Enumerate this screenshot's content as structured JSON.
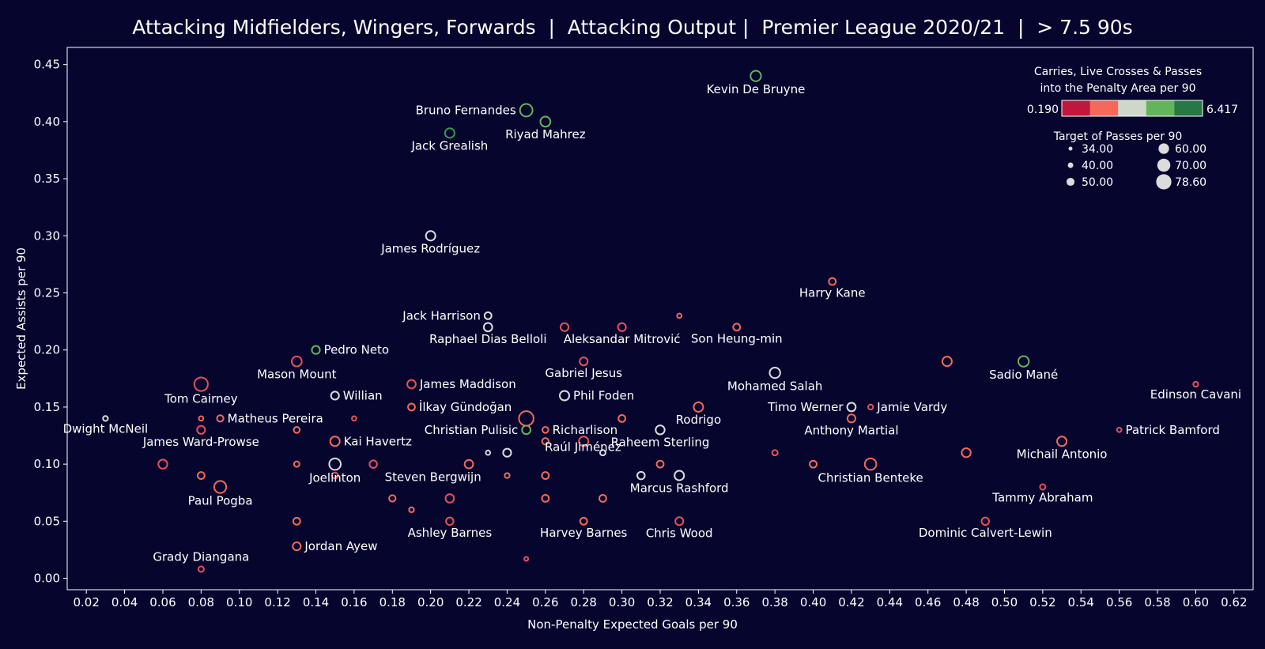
{
  "chart_data": {
    "type": "scatter",
    "title": "Attacking Midfielders, Wingers, Forwards  |  Attacking Output |  Premier League 2020/21  |  > 7.5 90s",
    "xlabel": "Non-Penalty Expected Goals per 90",
    "ylabel": "Expected Assists per 90",
    "xlim": [
      0.01,
      0.63
    ],
    "ylim": [
      -0.01,
      0.465
    ],
    "xticks": [
      "0.02",
      "0.04",
      "0.06",
      "0.08",
      "0.10",
      "0.12",
      "0.14",
      "0.16",
      "0.18",
      "0.20",
      "0.22",
      "0.24",
      "0.26",
      "0.28",
      "0.30",
      "0.32",
      "0.34",
      "0.36",
      "0.38",
      "0.40",
      "0.42",
      "0.44",
      "0.46",
      "0.48",
      "0.50",
      "0.52",
      "0.54",
      "0.56",
      "0.58",
      "0.60",
      "0.62"
    ],
    "yticks": [
      "0.00",
      "0.05",
      "0.10",
      "0.15",
      "0.20",
      "0.25",
      "0.30",
      "0.35",
      "0.40",
      "0.45"
    ],
    "grid": false,
    "color_legend": {
      "title_line1": "Carries, Live Crosses & Passes",
      "title_line2": "into the Penalty Area per 90",
      "min": "0.190",
      "max": "6.417",
      "colors": [
        "#c0173c",
        "#f4695a",
        "#cdd8c8",
        "#64b45a",
        "#267844"
      ]
    },
    "size_legend": {
      "title": "Target of Passes per 90",
      "entries": [
        "34.00",
        "40.00",
        "50.00",
        "60.00",
        "70.00",
        "78.60"
      ],
      "values": [
        34,
        40,
        50,
        60,
        70,
        78.6
      ]
    },
    "points": [
      {
        "name": "Kevin De Bruyne",
        "x": 0.37,
        "y": 0.44,
        "size": 60,
        "color": "#64b45a",
        "label_pos": "below"
      },
      {
        "name": "Bruno Fernandes",
        "x": 0.25,
        "y": 0.41,
        "size": 68,
        "color": "#64b45a",
        "label_pos": "left"
      },
      {
        "name": "Riyad Mahrez",
        "x": 0.26,
        "y": 0.4,
        "size": 58,
        "color": "#64b45a",
        "label_pos": "below"
      },
      {
        "name": "Jack Grealish",
        "x": 0.21,
        "y": 0.39,
        "size": 56,
        "color": "#3c9650",
        "label_pos": "below"
      },
      {
        "name": "James Rodríguez",
        "x": 0.2,
        "y": 0.3,
        "size": 56,
        "color": "#dcdcdc",
        "label_pos": "below"
      },
      {
        "name": "Harry Kane",
        "x": 0.41,
        "y": 0.26,
        "size": 46,
        "color": "#f4695a",
        "label_pos": "below"
      },
      {
        "name": "Jack Harrison",
        "x": 0.23,
        "y": 0.23,
        "size": 46,
        "color": "#dcdcdc",
        "label_pos": "left"
      },
      {
        "name": "Raphael Dias Belloli",
        "x": 0.23,
        "y": 0.22,
        "size": 52,
        "color": "#dcdcdc",
        "label_pos": "below"
      },
      {
        "name": "",
        "x": 0.27,
        "y": 0.22,
        "size": 50,
        "color": "#e8505a",
        "label_pos": "none"
      },
      {
        "name": "Aleksandar Mitrović",
        "x": 0.3,
        "y": 0.22,
        "size": 50,
        "color": "#e8505a",
        "label_pos": "below"
      },
      {
        "name": "",
        "x": 0.33,
        "y": 0.23,
        "size": 36,
        "color": "#f4695a",
        "label_pos": "none"
      },
      {
        "name": "Son Heung-min",
        "x": 0.36,
        "y": 0.22,
        "size": 46,
        "color": "#f4695a",
        "label_pos": "below"
      },
      {
        "name": "Pedro Neto",
        "x": 0.14,
        "y": 0.2,
        "size": 50,
        "color": "#64b45a",
        "label_pos": "right"
      },
      {
        "name": "Mason Mount",
        "x": 0.13,
        "y": 0.19,
        "size": 58,
        "color": "#e8505a",
        "label_pos": "below"
      },
      {
        "name": "Gabriel Jesus",
        "x": 0.28,
        "y": 0.19,
        "size": 50,
        "color": "#e8505a",
        "label_pos": "below"
      },
      {
        "name": "Mohamed Salah",
        "x": 0.38,
        "y": 0.18,
        "size": 60,
        "color": "#dcdcdc",
        "label_pos": "below"
      },
      {
        "name": "",
        "x": 0.47,
        "y": 0.19,
        "size": 56,
        "color": "#f4695a",
        "label_pos": "none"
      },
      {
        "name": "Sadio Mané",
        "x": 0.51,
        "y": 0.19,
        "size": 60,
        "color": "#64b45a",
        "label_pos": "below"
      },
      {
        "name": "Tom Cairney",
        "x": 0.08,
        "y": 0.17,
        "size": 72,
        "color": "#e8505a",
        "label_pos": "below"
      },
      {
        "name": "Willian",
        "x": 0.15,
        "y": 0.16,
        "size": 50,
        "color": "#dcdcdc",
        "label_pos": "right"
      },
      {
        "name": "James Maddison",
        "x": 0.19,
        "y": 0.17,
        "size": 52,
        "color": "#e8505a",
        "label_pos": "right"
      },
      {
        "name": "İlkay Gündoğan",
        "x": 0.19,
        "y": 0.15,
        "size": 46,
        "color": "#f4695a",
        "label_pos": "right"
      },
      {
        "name": "Phil Foden",
        "x": 0.27,
        "y": 0.16,
        "size": 56,
        "color": "#dcdcdc",
        "label_pos": "right"
      },
      {
        "name": "Edinson Cavani",
        "x": 0.6,
        "y": 0.17,
        "size": 38,
        "color": "#e8505a",
        "label_pos": "below"
      },
      {
        "name": "Timo Werner",
        "x": 0.42,
        "y": 0.15,
        "size": 52,
        "color": "#dcdcdc",
        "label_pos": "left"
      },
      {
        "name": "Jamie Vardy",
        "x": 0.43,
        "y": 0.15,
        "size": 38,
        "color": "#e8505a",
        "label_pos": "right"
      },
      {
        "name": "Rodrigo",
        "x": 0.34,
        "y": 0.15,
        "size": 56,
        "color": "#f4695a",
        "label_pos": "below"
      },
      {
        "name": "Dwight McNeil",
        "x": 0.03,
        "y": 0.14,
        "size": 38,
        "color": "#dcdcdc",
        "label_pos": "below"
      },
      {
        "name": "",
        "x": 0.08,
        "y": 0.14,
        "size": 36,
        "color": "#f4695a",
        "label_pos": "none"
      },
      {
        "name": "Matheus Pereira",
        "x": 0.09,
        "y": 0.14,
        "size": 44,
        "color": "#f4695a",
        "label_pos": "right"
      },
      {
        "name": "",
        "x": 0.16,
        "y": 0.14,
        "size": 36,
        "color": "#e8505a",
        "label_pos": "none"
      },
      {
        "name": "Christian Pulisic",
        "x": 0.25,
        "y": 0.13,
        "size": 52,
        "color": "#64b45a",
        "label_pos": "left"
      },
      {
        "name": "",
        "x": 0.25,
        "y": 0.14,
        "size": 76,
        "color": "#f4695a",
        "label_pos": "none"
      },
      {
        "name": "Richarlison",
        "x": 0.26,
        "y": 0.13,
        "size": 42,
        "color": "#f4695a",
        "label_pos": "right"
      },
      {
        "name": "",
        "x": 0.3,
        "y": 0.14,
        "size": 46,
        "color": "#f4695a",
        "label_pos": "none"
      },
      {
        "name": "Anthony Martial",
        "x": 0.42,
        "y": 0.14,
        "size": 50,
        "color": "#f4695a",
        "label_pos": "below"
      },
      {
        "name": "Patrick Bamford",
        "x": 0.56,
        "y": 0.13,
        "size": 36,
        "color": "#e8505a",
        "label_pos": "right"
      },
      {
        "name": "James Ward-Prowse",
        "x": 0.08,
        "y": 0.13,
        "size": 50,
        "color": "#e8505a",
        "label_pos": "below"
      },
      {
        "name": "",
        "x": 0.13,
        "y": 0.13,
        "size": 42,
        "color": "#f4695a",
        "label_pos": "none"
      },
      {
        "name": "Kai Havertz",
        "x": 0.15,
        "y": 0.12,
        "size": 56,
        "color": "#f4695a",
        "label_pos": "right"
      },
      {
        "name": "",
        "x": 0.26,
        "y": 0.12,
        "size": 44,
        "color": "#f4695a",
        "label_pos": "none"
      },
      {
        "name": "",
        "x": 0.28,
        "y": 0.12,
        "size": 56,
        "color": "#e8505a",
        "label_pos": "none"
      },
      {
        "name": "Raheem Sterling",
        "x": 0.32,
        "y": 0.13,
        "size": 54,
        "color": "#dcdcdc",
        "label_pos": "below"
      },
      {
        "name": "",
        "x": 0.38,
        "y": 0.11,
        "size": 40,
        "color": "#e8505a",
        "label_pos": "none"
      },
      {
        "name": "",
        "x": 0.48,
        "y": 0.11,
        "size": 54,
        "color": "#f4695a",
        "label_pos": "none"
      },
      {
        "name": "Michail Antonio",
        "x": 0.53,
        "y": 0.12,
        "size": 56,
        "color": "#f4695a",
        "label_pos": "below"
      },
      {
        "name": "",
        "x": 0.06,
        "y": 0.1,
        "size": 54,
        "color": "#e8505a",
        "label_pos": "none"
      },
      {
        "name": "",
        "x": 0.08,
        "y": 0.09,
        "size": 46,
        "color": "#f4695a",
        "label_pos": "none"
      },
      {
        "name": "Paul Pogba",
        "x": 0.09,
        "y": 0.08,
        "size": 66,
        "color": "#f4695a",
        "label_pos": "below"
      },
      {
        "name": "",
        "x": 0.13,
        "y": 0.1,
        "size": 40,
        "color": "#f4695a",
        "label_pos": "none"
      },
      {
        "name": "Joelinton",
        "x": 0.15,
        "y": 0.1,
        "size": 64,
        "color": "#dcdcdc",
        "label_pos": "below"
      },
      {
        "name": "",
        "x": 0.15,
        "y": 0.09,
        "size": 42,
        "color": "#e8505a",
        "label_pos": "none"
      },
      {
        "name": "",
        "x": 0.17,
        "y": 0.1,
        "size": 48,
        "color": "#e8505a",
        "label_pos": "none"
      },
      {
        "name": "Steven Bergwijn",
        "x": 0.22,
        "y": 0.1,
        "size": 52,
        "color": "#f4695a",
        "label_pos": "below-left"
      },
      {
        "name": "",
        "x": 0.23,
        "y": 0.11,
        "size": 36,
        "color": "#dcdcdc",
        "label_pos": "none"
      },
      {
        "name": "",
        "x": 0.24,
        "y": 0.11,
        "size": 50,
        "color": "#dcdcdc",
        "label_pos": "none"
      },
      {
        "name": "",
        "x": 0.24,
        "y": 0.09,
        "size": 38,
        "color": "#f4695a",
        "label_pos": "none"
      },
      {
        "name": "",
        "x": 0.26,
        "y": 0.09,
        "size": 46,
        "color": "#f4695a",
        "label_pos": "none"
      },
      {
        "name": "Raúl Jiménez",
        "x": 0.29,
        "y": 0.11,
        "size": 40,
        "color": "#dcdcdc",
        "label_pos": "hidden-marker"
      },
      {
        "name": "",
        "x": 0.32,
        "y": 0.1,
        "size": 46,
        "color": "#f4695a",
        "label_pos": "none"
      },
      {
        "name": "",
        "x": 0.31,
        "y": 0.09,
        "size": 48,
        "color": "#dcdcdc",
        "label_pos": "none"
      },
      {
        "name": "Marcus Rashford",
        "x": 0.33,
        "y": 0.09,
        "size": 56,
        "color": "#dcdcdc",
        "label_pos": "below"
      },
      {
        "name": "",
        "x": 0.4,
        "y": 0.1,
        "size": 46,
        "color": "#f4695a",
        "label_pos": "none"
      },
      {
        "name": "Christian Benteke",
        "x": 0.43,
        "y": 0.1,
        "size": 64,
        "color": "#f4695a",
        "label_pos": "below"
      },
      {
        "name": "Tammy Abraham",
        "x": 0.52,
        "y": 0.08,
        "size": 40,
        "color": "#e8505a",
        "label_pos": "below"
      },
      {
        "name": "",
        "x": 0.18,
        "y": 0.07,
        "size": 44,
        "color": "#f4695a",
        "label_pos": "none"
      },
      {
        "name": "",
        "x": 0.19,
        "y": 0.06,
        "size": 38,
        "color": "#f4695a",
        "label_pos": "none"
      },
      {
        "name": "",
        "x": 0.21,
        "y": 0.07,
        "size": 52,
        "color": "#e8505a",
        "label_pos": "none"
      },
      {
        "name": "",
        "x": 0.26,
        "y": 0.07,
        "size": 46,
        "color": "#f4695a",
        "label_pos": "none"
      },
      {
        "name": "",
        "x": 0.29,
        "y": 0.07,
        "size": 46,
        "color": "#f4695a",
        "label_pos": "none"
      },
      {
        "name": "",
        "x": 0.13,
        "y": 0.05,
        "size": 46,
        "color": "#f4695a",
        "label_pos": "none"
      },
      {
        "name": "Ashley Barnes",
        "x": 0.21,
        "y": 0.05,
        "size": 48,
        "color": "#e8505a",
        "label_pos": "below"
      },
      {
        "name": "Harvey Barnes",
        "x": 0.28,
        "y": 0.05,
        "size": 46,
        "color": "#f4695a",
        "label_pos": "below"
      },
      {
        "name": "Chris Wood",
        "x": 0.33,
        "y": 0.05,
        "size": 50,
        "color": "#e8505a",
        "label_pos": "below"
      },
      {
        "name": "Dominic Calvert-Lewin",
        "x": 0.49,
        "y": 0.05,
        "size": 48,
        "color": "#e8505a",
        "label_pos": "below"
      },
      {
        "name": "Jordan Ayew",
        "x": 0.13,
        "y": 0.028,
        "size": 50,
        "color": "#f4695a",
        "label_pos": "right"
      },
      {
        "name": "Grady Diangana",
        "x": 0.08,
        "y": 0.008,
        "size": 40,
        "color": "#e8505a",
        "label_pos": "above"
      },
      {
        "name": "",
        "x": 0.25,
        "y": 0.017,
        "size": 34,
        "color": "#e8505a",
        "label_pos": "none"
      }
    ]
  }
}
